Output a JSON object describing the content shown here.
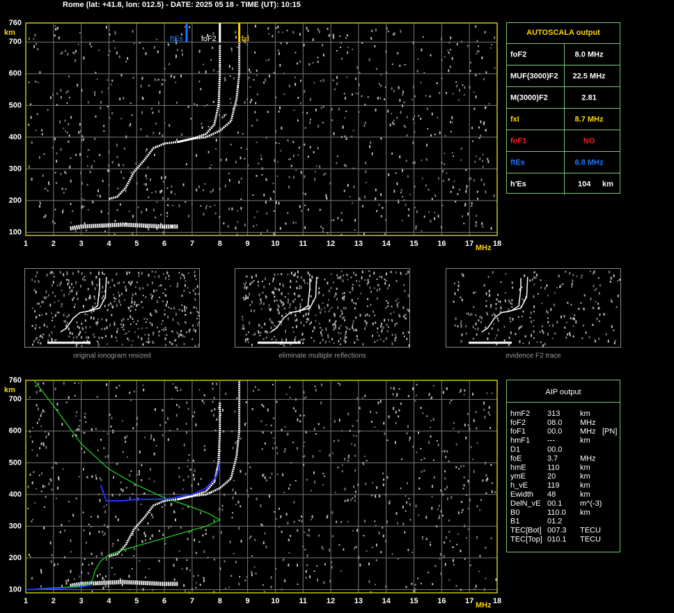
{
  "header": "Rome (lat: +41.8, lon: 012.5) - DATE: 2025 05 18 - TIME (UT): 10:15",
  "chart_data": [
    {
      "type": "ionogram",
      "x_unit": "MHz",
      "y_unit": "km",
      "xlim": [
        1,
        18
      ],
      "ylim": [
        90,
        760
      ],
      "xticks": [
        1,
        2,
        3,
        4,
        5,
        6,
        7,
        8,
        9,
        10,
        11,
        12,
        13,
        14,
        15,
        16,
        17,
        18
      ],
      "yticks": [
        100,
        200,
        300,
        400,
        500,
        600,
        700,
        760
      ],
      "grid": true,
      "markers": [
        {
          "label": "ftEs",
          "value": 6.8,
          "color": "#1e78ff",
          "side": "left"
        },
        {
          "label": "foF2",
          "value": 8.0,
          "color": "#ffffff",
          "side": "left"
        },
        {
          "label": "fxI",
          "value": 8.7,
          "color": "#ffd700",
          "side": "right"
        }
      ],
      "traces": [
        {
          "color": "#ffffff",
          "width": 6,
          "x": [
            2.6,
            3,
            3.5,
            4,
            4.5,
            5,
            5.5,
            6,
            6.5
          ],
          "y": [
            112,
            118,
            120,
            122,
            124,
            122,
            120,
            118,
            118
          ]
        },
        {
          "color": "#ffffff",
          "width": 3,
          "x": [
            4,
            4.3,
            4.6,
            4.9,
            5.3,
            5.6,
            6,
            6.5,
            7,
            7.5,
            7.8,
            7.95,
            8,
            8
          ],
          "y": [
            205,
            212,
            240,
            290,
            330,
            365,
            380,
            385,
            395,
            410,
            440,
            500,
            600,
            690
          ]
        },
        {
          "color": "#ffffff",
          "width": 3,
          "x": [
            6.5,
            7,
            7.5,
            8,
            8.4,
            8.6,
            8.7,
            8.7
          ],
          "y": [
            385,
            395,
            400,
            420,
            450,
            520,
            600,
            700
          ]
        }
      ]
    },
    {
      "type": "ionogram",
      "x_unit": "MHz",
      "y_unit": "km",
      "xlim": [
        1,
        18
      ],
      "ylim": [
        90,
        760
      ],
      "xticks": [
        1,
        2,
        3,
        4,
        5,
        6,
        7,
        8,
        9,
        10,
        11,
        12,
        13,
        14,
        15,
        16,
        17,
        18
      ],
      "yticks": [
        100,
        200,
        300,
        400,
        500,
        600,
        700,
        760
      ],
      "grid": true,
      "traces": [
        {
          "color": "#ffffff",
          "width": 6,
          "x": [
            2.6,
            3,
            3.5,
            4,
            4.5,
            5,
            5.5,
            6,
            6.5
          ],
          "y": [
            112,
            118,
            120,
            122,
            124,
            122,
            120,
            118,
            118
          ]
        },
        {
          "color": "#ffffff",
          "width": 3,
          "x": [
            4,
            4.3,
            4.6,
            4.9,
            5.3,
            5.6,
            6,
            6.5,
            7,
            7.5,
            7.8,
            7.95,
            8,
            8
          ],
          "y": [
            205,
            212,
            240,
            290,
            330,
            365,
            380,
            385,
            395,
            410,
            440,
            500,
            600,
            690
          ]
        },
        {
          "color": "#ffffff",
          "width": 3,
          "x": [
            6.5,
            7,
            7.5,
            8,
            8.4,
            8.6,
            8.7,
            8.7
          ],
          "y": [
            385,
            395,
            400,
            420,
            450,
            520,
            600,
            760
          ]
        },
        {
          "color": "#22dd22",
          "width": 1.2,
          "x": [
            1.3,
            2,
            3,
            4,
            5,
            6,
            7,
            7.6,
            8,
            7.5,
            6.5,
            5.5,
            4.5,
            4,
            3.7,
            3.5,
            3.4,
            3.2,
            2.5,
            1.5,
            1
          ],
          "y": [
            760,
            680,
            560,
            480,
            430,
            390,
            360,
            340,
            320,
            300,
            275,
            250,
            225,
            210,
            190,
            160,
            130,
            115,
            108,
            103,
            100
          ]
        },
        {
          "color": "#2233ff",
          "width": 2,
          "x": [
            1,
            2,
            3,
            3.4
          ],
          "y": [
            100,
            103,
            108,
            115
          ]
        },
        {
          "color": "#2233ff",
          "width": 2,
          "x": [
            3.7,
            3.9,
            4.5,
            5,
            6,
            7,
            7.5,
            7.9,
            8
          ],
          "y": [
            430,
            380,
            380,
            385,
            385,
            400,
            420,
            460,
            500
          ]
        }
      ]
    }
  ],
  "autoscala": {
    "title": "AUTOSCALA output",
    "rows": [
      {
        "label": "foF2",
        "value": "8.0 MHz",
        "color": "#ffffff"
      },
      {
        "label": "MUF(3000)F2",
        "value": "22.5 MHz",
        "color": "#ffffff"
      },
      {
        "label": "M(3000)F2",
        "value": "2.81",
        "color": "#ffffff"
      },
      {
        "label": "fxI",
        "value": "8.7 MHz",
        "color": "#ffd700"
      },
      {
        "label": "foF1",
        "value": "NO",
        "color": "#ff2020"
      },
      {
        "label": "ftEs",
        "value": "6.8 MHz",
        "color": "#1e78ff"
      },
      {
        "label": "h'Es",
        "value": "104",
        "unit": "km",
        "color": "#ffffff"
      }
    ]
  },
  "thumbnails": [
    {
      "caption": "original ionogram resized"
    },
    {
      "caption": "eliminate multiple reflections"
    },
    {
      "caption": "evidence F2 trace"
    }
  ],
  "aip": {
    "title": "AIP output",
    "rows": [
      [
        "hmF2",
        "313",
        "km"
      ],
      [
        "foF2",
        "08.0",
        "MHz"
      ],
      [
        "foF1",
        "00.0",
        "MHz",
        "[PN]"
      ],
      [
        "hmF1",
        "---",
        "km"
      ],
      [
        "D1",
        "00.0"
      ],
      [
        "foE",
        "3.7",
        "MHz"
      ],
      [
        "hmE",
        "110",
        "km"
      ],
      [
        "ymE",
        "20",
        "km"
      ],
      [
        "h_vE",
        "119",
        "km"
      ],
      [
        "Ewidth",
        "48",
        "km"
      ],
      [
        "DelN_vE",
        "00.1",
        "m^(-3)"
      ],
      [
        "B0",
        "110.0",
        "km"
      ],
      [
        "B1",
        "01.2"
      ],
      [
        "TEC[Bot]",
        "007.3",
        "TECU"
      ],
      [
        "TEC[Top]",
        "010.1",
        "TECU"
      ]
    ]
  }
}
